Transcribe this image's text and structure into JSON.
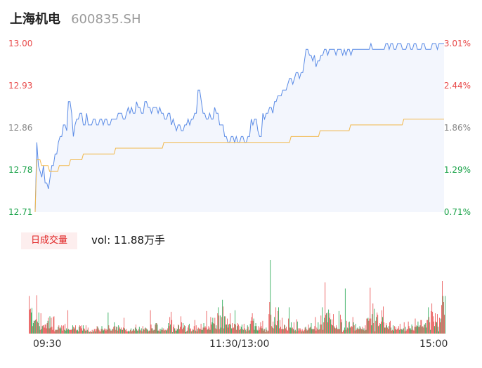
{
  "header": {
    "name": "上海机电",
    "code": "600835.SH"
  },
  "colors": {
    "up": "#e84a4a",
    "down": "#1ba34a",
    "neutral": "#888888",
    "price_line": "#5a8be6",
    "avg_line": "#f2b84b",
    "area_fill": "#f3f6fd"
  },
  "chart_data": {
    "type": "line",
    "title": "",
    "xlabel": "",
    "ylabel": "",
    "ylim": [
      12.71,
      13.0
    ],
    "y_ticks": [
      "13.00",
      "12.93",
      "12.86",
      "12.78",
      "12.71"
    ],
    "pct_ticks": [
      "3.01%",
      "2.44%",
      "1.86%",
      "1.29%",
      "0.71%"
    ],
    "x_ticks": [
      "09:30",
      "11:30/13:00",
      "15:00"
    ],
    "volume": {
      "label": "日成交量",
      "summary": "vol: 11.88万手"
    },
    "series": [
      {
        "key": "price",
        "values": [
          12.71,
          12.83,
          12.79,
          12.78,
          12.77,
          12.79,
          12.76,
          12.76,
          12.75,
          12.77,
          12.79,
          12.79,
          12.81,
          12.81,
          12.83,
          12.84,
          12.84,
          12.86,
          12.86,
          12.85,
          12.9,
          12.9,
          12.88,
          12.84,
          12.86,
          12.87,
          12.87,
          12.88,
          12.88,
          12.86,
          12.86,
          12.88,
          12.86,
          12.86,
          12.86,
          12.87,
          12.87,
          12.86,
          12.86,
          12.87,
          12.87,
          12.86,
          12.87,
          12.87,
          12.86,
          12.86,
          12.87,
          12.87,
          12.87,
          12.87,
          12.88,
          12.88,
          12.88,
          12.87,
          12.87,
          12.88,
          12.89,
          12.88,
          12.89,
          12.88,
          12.88,
          12.9,
          12.89,
          12.89,
          12.88,
          12.88,
          12.9,
          12.9,
          12.89,
          12.89,
          12.88,
          12.89,
          12.89,
          12.89,
          12.88,
          12.89,
          12.88,
          12.88,
          12.87,
          12.87,
          12.88,
          12.88,
          12.86,
          12.87,
          12.86,
          12.85,
          12.86,
          12.86,
          12.85,
          12.85,
          12.86,
          12.86,
          12.87,
          12.86,
          12.87,
          12.87,
          12.88,
          12.88,
          12.92,
          12.92,
          12.9,
          12.88,
          12.88,
          12.87,
          12.87,
          12.88,
          12.87,
          12.87,
          12.89,
          12.88,
          12.88,
          12.86,
          12.86,
          12.86,
          12.84,
          12.84,
          12.83,
          12.83,
          12.84,
          12.84,
          12.83,
          12.84,
          12.83,
          12.83,
          12.84,
          12.84,
          12.83,
          12.83,
          12.84,
          12.84,
          12.87,
          12.86,
          12.87,
          12.87,
          12.85,
          12.84,
          12.84,
          12.88,
          12.87,
          12.88,
          12.88,
          12.89,
          12.89,
          12.88,
          12.9,
          12.9,
          12.91,
          12.91,
          12.91,
          12.92,
          12.92,
          12.92,
          12.93,
          12.94,
          12.94,
          12.93,
          12.94,
          12.95,
          12.95,
          12.94,
          12.95,
          12.95,
          12.97,
          12.99,
          12.99,
          12.98,
          12.98,
          12.97,
          12.98,
          12.96,
          12.97,
          12.97,
          12.98,
          12.98,
          12.99,
          12.99,
          12.98,
          12.99,
          12.99,
          12.99,
          12.99,
          12.98,
          12.99,
          12.99,
          12.99,
          12.98,
          12.99,
          12.98,
          12.99,
          12.99,
          12.98,
          12.99,
          12.99,
          12.99,
          12.99,
          12.99,
          12.99,
          12.99,
          12.99,
          12.99,
          12.99,
          12.99,
          13.0,
          12.99,
          12.99,
          12.99,
          12.99,
          12.99,
          12.99,
          12.99,
          12.99,
          13.0,
          13.0,
          12.99,
          13.0,
          13.0,
          12.99,
          12.99,
          13.0,
          13.0,
          13.0,
          12.99,
          12.99,
          12.99,
          13.0,
          13.0,
          12.99,
          12.99,
          13.0,
          13.0,
          12.99,
          12.99,
          12.99,
          13.0,
          13.0,
          12.99,
          12.99,
          12.99,
          12.99,
          13.0,
          13.0,
          13.0,
          12.99,
          13.0,
          13.0,
          13.0,
          13.0
        ]
      },
      {
        "key": "average",
        "values": [
          12.71,
          12.8,
          12.8,
          12.8,
          12.79,
          12.79,
          12.79,
          12.79,
          12.79,
          12.78,
          12.78,
          12.78,
          12.78,
          12.78,
          12.78,
          12.79,
          12.79,
          12.79,
          12.79,
          12.79,
          12.79,
          12.79,
          12.8,
          12.8,
          12.8,
          12.8,
          12.8,
          12.8,
          12.8,
          12.8,
          12.81,
          12.81,
          12.81,
          12.81,
          12.81,
          12.81,
          12.81,
          12.81,
          12.81,
          12.81,
          12.81,
          12.81,
          12.81,
          12.81,
          12.81,
          12.81,
          12.81,
          12.81,
          12.81,
          12.81,
          12.82,
          12.82,
          12.82,
          12.82,
          12.82,
          12.82,
          12.82,
          12.82,
          12.82,
          12.82,
          12.82,
          12.82,
          12.82,
          12.82,
          12.82,
          12.82,
          12.82,
          12.82,
          12.82,
          12.82,
          12.82,
          12.82,
          12.82,
          12.82,
          12.82,
          12.82,
          12.82,
          12.82,
          12.82,
          12.82,
          12.83,
          12.83,
          12.83,
          12.83,
          12.83,
          12.83,
          12.83,
          12.83,
          12.83,
          12.83,
          12.83,
          12.83,
          12.83,
          12.83,
          12.83,
          12.83,
          12.83,
          12.83,
          12.83,
          12.83,
          12.83,
          12.83,
          12.83,
          12.83,
          12.83,
          12.83,
          12.83,
          12.83,
          12.83,
          12.83,
          12.83,
          12.83,
          12.83,
          12.83,
          12.83,
          12.83,
          12.83,
          12.83,
          12.83,
          12.83,
          12.83,
          12.83,
          12.83,
          12.83,
          12.83,
          12.83,
          12.83,
          12.83,
          12.83,
          12.83,
          12.83,
          12.83,
          12.83,
          12.83,
          12.83,
          12.83,
          12.83,
          12.83,
          12.83,
          12.83,
          12.83,
          12.83,
          12.83,
          12.83,
          12.83,
          12.83,
          12.83,
          12.83,
          12.83,
          12.83,
          12.83,
          12.83,
          12.83,
          12.83,
          12.83,
          12.83,
          12.83,
          12.83,
          12.83,
          12.84,
          12.84,
          12.84,
          12.84,
          12.84,
          12.84,
          12.84,
          12.84,
          12.84,
          12.84,
          12.84,
          12.84,
          12.84,
          12.84,
          12.84,
          12.84,
          12.84,
          12.84,
          12.85,
          12.85,
          12.85,
          12.85,
          12.85,
          12.85,
          12.85,
          12.85,
          12.85,
          12.85,
          12.85,
          12.85,
          12.85,
          12.85,
          12.85,
          12.85,
          12.85,
          12.85,
          12.85,
          12.86,
          12.86,
          12.86,
          12.86,
          12.86,
          12.86,
          12.86,
          12.86,
          12.86,
          12.86,
          12.86,
          12.86,
          12.86,
          12.86,
          12.86,
          12.86,
          12.86,
          12.86,
          12.86,
          12.86,
          12.86,
          12.86,
          12.86,
          12.86,
          12.86,
          12.86,
          12.86,
          12.86,
          12.86,
          12.86,
          12.86,
          12.86,
          12.86,
          12.87,
          12.87,
          12.87,
          12.87,
          12.87,
          12.87,
          12.87,
          12.87,
          12.87,
          12.87,
          12.87,
          12.87,
          12.87,
          12.87,
          12.87,
          12.87,
          12.87,
          12.87,
          12.87,
          12.87,
          12.87,
          12.87,
          12.87,
          12.87,
          12.87,
          12.87
        ]
      },
      {
        "key": "volume",
        "values": [
          0.5,
          0.32,
          0.33,
          0.28,
          0.34,
          0.1,
          0.14,
          0.17,
          0.17,
          0.18,
          0.19,
          0.51,
          0.16,
          0.14,
          0.28,
          0.1,
          0.05,
          0.27,
          0.06,
          0.1,
          0.11,
          0.11,
          0.08,
          0.12,
          0.12,
          0.07,
          0.14,
          0.17,
          0.21,
          0.07,
          0.23,
          0.08,
          0.21,
          0.09,
          0.05,
          0.22,
          0.23,
          0.03,
          0.05,
          0.05,
          0.05,
          0.05,
          0.09,
          0.11,
          0.07,
          0.09,
          0.07,
          0.11,
          0.04,
          0.1,
          0.11,
          0.05,
          0.13,
          0.04,
          0.07,
          0.05,
          0.31,
          0.06,
          0.05,
          0.05,
          0.05,
          0.05,
          0.06,
          0.11,
          0.09,
          0.06,
          0.08,
          0.11,
          0.05,
          0.04,
          0.05,
          0.03,
          0.09,
          0.11,
          0.1,
          0.07,
          0.11,
          0.04,
          0.11,
          0.07,
          0.06,
          0.04,
          0.11,
          0.04,
          0.05,
          0.08,
          0.03,
          0.02,
          0.03,
          0.03,
          0.02,
          0.05,
          0.02,
          0.04,
          0.06,
          0.06,
          0.03,
          0.06,
          0.1,
          0.09,
          0.07,
          0.05,
          0.03,
          0.03,
          0.06,
          0.1,
          0.06,
          0.04,
          0.05,
          0.07,
          0.06,
          0.04,
          0.06,
          0.05,
          0.28,
          0.11,
          0.07,
          0.06,
          0.04,
          0.04,
          0.06,
          0.06,
          0.09,
          0.15,
          0.1,
          0.05,
          0.09,
          0.09,
          0.04,
          0.11,
          0.07,
          0.09,
          0.06,
          0.08,
          0.05,
          0.05,
          0.08,
          0.21,
          0.07,
          0.05,
          0.03,
          0.06,
          0.03,
          0.03,
          0.04,
          0.03,
          0.05,
          0.07,
          0.03,
          0.04,
          0.06,
          0.06,
          0.04,
          0.08,
          0.12,
          0.06,
          0.04,
          0.04,
          0.06,
          0.09,
          0.05,
          0.04,
          0.07,
          0.03,
          0.1,
          0.06,
          0.05,
          0.07,
          0.08,
          0.07,
          0.06,
          0.05,
          0.03,
          0.04,
          0.04,
          0.31,
          0.12,
          0.07,
          0.07,
          0.04,
          0.05,
          0.05,
          0.12,
          0.14,
          0.14,
          0.12,
          0.04,
          0.04,
          0.06,
          0.03,
          0.06,
          0.05,
          0.08,
          0.05,
          0.07,
          0.04,
          0.05,
          0.05,
          0.04,
          0.05,
          0.07,
          0.14,
          0.1,
          0.22,
          0.12,
          0.29,
          0.18,
          0.02,
          0.09,
          0.12,
          0.07,
          0.04,
          0.07,
          0.04,
          0.06,
          0.12,
          0.11,
          0.06,
          0.09,
          0.23,
          0.15,
          0.06,
          0.14,
          0.08,
          0.11,
          0.1,
          0.02,
          0.03,
          0.04,
          0.08,
          0.11,
          0.13,
          0.06,
          0.07,
          0.03,
          0.04,
          0.06,
          0.05,
          0.1,
          0.18,
          0.04,
          0.11,
          0.03,
          0.06,
          0.08,
          0.07,
          0.06,
          0.06,
          0.13,
          0.05,
          0.05,
          0.08,
          0.14,
          0.08,
          0.1,
          0.08,
          0.3,
          0.05,
          0.06,
          0.1,
          0.08,
          0.05,
          0.22,
          0.12,
          0.15,
          0.21,
          0.14,
          0.13,
          0.21,
          0.07,
          0.11,
          0.06,
          0.27,
          0.35,
          0.24,
          0.06,
          0.24,
          0.08,
          0.22,
          0.45,
          0.36,
          0.07,
          0.23,
          0.23,
          0.12,
          0.12,
          0.2,
          0.08,
          0.12,
          0.13,
          0.27,
          0.12,
          0.07,
          0.14,
          0.07,
          0.08,
          0.13,
          0.31,
          0.12,
          0.05,
          0.1,
          0.14,
          0.12,
          0.05,
          0.1,
          0.06,
          0.09,
          0.12,
          0.06,
          0.05,
          0.13,
          0.07,
          0.05,
          0.03,
          0.06,
          0.11,
          0.09,
          0.04,
          0.05,
          0.13,
          0.17,
          0.22,
          0.27,
          0.17,
          0.2,
          0.05,
          0.1,
          0.14,
          0.1,
          0.05,
          0.04,
          0.1,
          0.05,
          0.08,
          0.15,
          0.1,
          0.07,
          0.17,
          0.04,
          0.06,
          0.06,
          0.02,
          0.08,
          0.05,
          0.03,
          0.04,
          0.26,
          0.42,
          0.98,
          0.25,
          0.1,
          0.08,
          0.16,
          0.07,
          0.22,
          0.12,
          0.35,
          0.11,
          0.17,
          0.3,
          0.35,
          0.07,
          0.18,
          0.09,
          0.06,
          0.21,
          0.06,
          0.06,
          0.12,
          0.11,
          0.07,
          0.09,
          0.05,
          0.04,
          0.2,
          0.35,
          0.08,
          0.08,
          0.15,
          0.07,
          0.08,
          0.06,
          0.15,
          0.04,
          0.05,
          0.03,
          0.19,
          0.16,
          0.07,
          0.04,
          0.07,
          0.07,
          0.05,
          0.03,
          0.06,
          0.04,
          0.03,
          0.05,
          0.08,
          0.09,
          0.06,
          0.04,
          0.05,
          0.12,
          0.07,
          0.08,
          0.09,
          0.14,
          0.06,
          0.06,
          0.06,
          0.06,
          0.1,
          0.22,
          0.04,
          0.08,
          0.06,
          0.15,
          0.05,
          0.06,
          0.12,
          0.24,
          0.12,
          0.35,
          0.05,
          0.15,
          0.21,
          0.68,
          0.25,
          0.27,
          0.28,
          0.15,
          0.32,
          0.21,
          0.27,
          0.19,
          0.12,
          0.19,
          0.11,
          0.26,
          0.1,
          0.08,
          0.07,
          0.11,
          0.08,
          0.06,
          0.06,
          0.3,
          0.06,
          0.25,
          0.15,
          0.19,
          0.02,
          0.04,
          0.05,
          0.08,
          0.6,
          0.05,
          0.17,
          0.08,
          0.07,
          0.15,
          0.16,
          0.08,
          0.09,
          0.1,
          0.09,
          0.22,
          0.15,
          0.11,
          0.04,
          0.13,
          0.05,
          0.07,
          0.08,
          0.06,
          0.06,
          0.1,
          0.08,
          0.06,
          0.06,
          0.09,
          0.05,
          0.07,
          0.04,
          0.11,
          0.05,
          0.2,
          0.2,
          0.21,
          0.17,
          0.2,
          0.61,
          0.2,
          0.11,
          0.26,
          0.4,
          0.14,
          0.33,
          0.03,
          0.17,
          0.22,
          0.28,
          0.25,
          0.1,
          0.11,
          0.14,
          0.13,
          0.16,
          0.31,
          0.22,
          0.36,
          0.15,
          0.08,
          0.08,
          0.14,
          0.11,
          0.08,
          0.06,
          0.1,
          0.15,
          0.17,
          0.08,
          0.04,
          0.05,
          0.11,
          0.04,
          0.1,
          0.06,
          0.09,
          0.05,
          0.06,
          0.07,
          0.1,
          0.05,
          0.13,
          0.06,
          0.06,
          0.05,
          0.06,
          0.07,
          0.15,
          0.03,
          0.09,
          0.04,
          0.06,
          0.06,
          0.16,
          0.1,
          0.07,
          0.07,
          0.05,
          0.12,
          0.1,
          0.05,
          0.04,
          0.09,
          0.2,
          0.09,
          0.11,
          0.1,
          0.16,
          0.09,
          0.09,
          0.11,
          0.18,
          0.18,
          0.09,
          0.1,
          0.08,
          0.12,
          0.12,
          0.14,
          0.08,
          0.18,
          0.18,
          0.35,
          0.22,
          0.15,
          0.05,
          0.3,
          0.4,
          0.29,
          0.23,
          0.16,
          0.1,
          0.27,
          0.16,
          0.15,
          0.26,
          0.09,
          0.03,
          0.21,
          0.15,
          0.2,
          0.38,
          0.7,
          0.5,
          0.42,
          0.25,
          0.5
        ]
      }
    ]
  }
}
